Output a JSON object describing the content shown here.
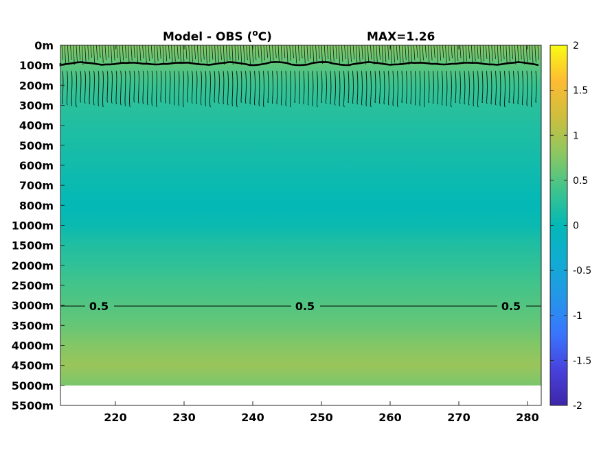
{
  "chart_data": {
    "type": "heatmap",
    "title": "Model - OBS (",
    "title_unit_sup": "o",
    "title_unit_end": "C)",
    "max_label": "MAX=1.26",
    "x_ticks": [
      220,
      230,
      240,
      250,
      260,
      270,
      280
    ],
    "x_range": [
      212,
      282
    ],
    "depth_tick_labels": [
      "0m",
      "100m",
      "200m",
      "300m",
      "400m",
      "500m",
      "600m",
      "700m",
      "800m",
      "1000m",
      "1500m",
      "2000m",
      "2500m",
      "3000m",
      "3500m",
      "4000m",
      "4500m",
      "5000m",
      "5500m"
    ],
    "data_bottom_label": "5000m",
    "colorbar": {
      "range": [
        -2,
        2
      ],
      "ticks": [
        2,
        1.5,
        1,
        0.5,
        0,
        -0.5,
        -1,
        -1.5,
        -2
      ],
      "tick_labels": [
        "2",
        "1.5",
        "1",
        "0.5",
        "0",
        "-0.5",
        "-1",
        "-1.5",
        "-2"
      ],
      "colormap": "parula"
    },
    "field_profile": [
      {
        "depth": "0m",
        "value": 0.75
      },
      {
        "depth": "100m",
        "value": 0.55
      },
      {
        "depth": "200m",
        "value": 0.35
      },
      {
        "depth": "300m",
        "value": 0.25
      },
      {
        "depth": "400m",
        "value": 0.2
      },
      {
        "depth": "500m",
        "value": 0.15
      },
      {
        "depth": "600m",
        "value": 0.1
      },
      {
        "depth": "700m",
        "value": 0.05
      },
      {
        "depth": "800m",
        "value": 0.0
      },
      {
        "depth": "1000m",
        "value": 0.05
      },
      {
        "depth": "1500m",
        "value": 0.2
      },
      {
        "depth": "2000m",
        "value": 0.3
      },
      {
        "depth": "2500m",
        "value": 0.42
      },
      {
        "depth": "3000m",
        "value": 0.5
      },
      {
        "depth": "3500m",
        "value": 0.6
      },
      {
        "depth": "4000m",
        "value": 0.75
      },
      {
        "depth": "4500m",
        "value": 0.88
      },
      {
        "depth": "5000m",
        "value": 0.7
      }
    ],
    "contours": [
      {
        "level": 0.5,
        "depth": "3000m",
        "labels": [
          {
            "x": 217.6,
            "text": "0.5"
          },
          {
            "x": 247.6,
            "text": "0.5"
          },
          {
            "x": 277.6,
            "text": "0.5"
          }
        ]
      }
    ]
  }
}
